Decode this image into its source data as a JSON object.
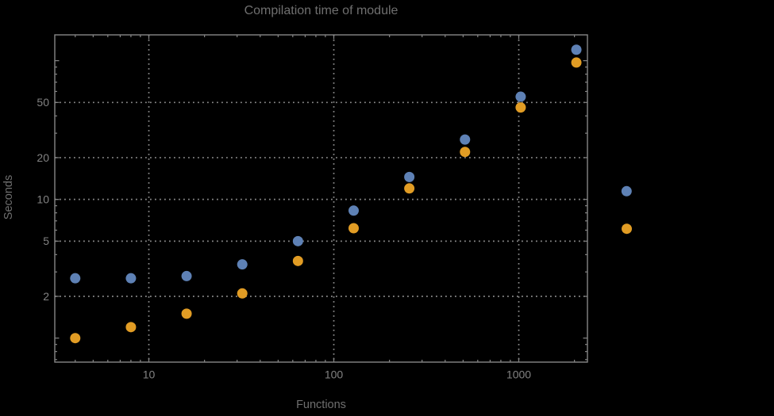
{
  "window": {
    "background": "#000000"
  },
  "chart_data": {
    "type": "scatter",
    "title": "Compilation time of module",
    "xlabel": "Functions",
    "ylabel": "Seconds",
    "x_scale": "log",
    "y_scale": "log",
    "x_range": [
      3.1,
      2340
    ],
    "y_range": [
      0.68,
      154
    ],
    "x_tick_labels": [
      "10",
      "100",
      "1000"
    ],
    "x_tick_values": [
      10,
      100,
      1000
    ],
    "y_tick_labels": [
      "2",
      "5",
      "10",
      "20",
      "50"
    ],
    "y_tick_values": [
      2,
      5,
      10,
      20,
      50
    ],
    "grid": {
      "x_values": [
        10,
        100,
        1000
      ],
      "y_values": [
        2,
        5,
        10,
        20,
        50
      ],
      "style": "dotted"
    },
    "x": [
      4,
      8,
      16,
      32,
      64,
      128,
      256,
      512,
      1024,
      2048
    ],
    "series": [
      {
        "name": "series-blue",
        "color": "#5E81B5",
        "values": [
          2.7,
          2.7,
          2.8,
          3.4,
          5.0,
          8.3,
          14.5,
          27,
          55,
          120
        ]
      },
      {
        "name": "series-orange",
        "color": "#E19C24",
        "values": [
          1.0,
          1.2,
          1.5,
          2.1,
          3.6,
          6.2,
          12,
          22,
          46,
          97
        ]
      }
    ],
    "legend": {
      "position": "right-outside",
      "markers": [
        {
          "series": "series-blue",
          "color": "#5E81B5"
        },
        {
          "series": "series-orange",
          "color": "#E19C24"
        }
      ]
    },
    "marker_diameter_px": 13
  },
  "style": {
    "background": "#000000",
    "text_color": "#6f6f6f",
    "tick_text_color": "#828282",
    "frame_color": "#868686",
    "grid_color": "#8a8a8a"
  }
}
